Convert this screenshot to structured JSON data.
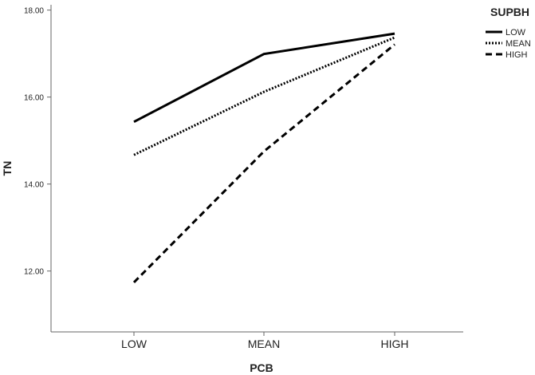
{
  "chart_data": {
    "type": "line",
    "xlabel": "PCB",
    "ylabel": "TN",
    "categories": [
      "LOW",
      "MEAN",
      "HIGH"
    ],
    "y_ticks": [
      "12.00",
      "14.00",
      "16.00",
      "18.00"
    ],
    "ylim": [
      10.6,
      18.1
    ],
    "grid": false,
    "legend": {
      "title": "SUPBH",
      "position": "top-right"
    },
    "series": [
      {
        "name": "LOW",
        "values": [
          15.43,
          16.99,
          17.46
        ],
        "style": "solid",
        "color": "#000000"
      },
      {
        "name": "MEAN",
        "values": [
          14.67,
          16.12,
          17.37
        ],
        "style": "dotted",
        "color": "#000000"
      },
      {
        "name": "HIGH",
        "values": [
          11.74,
          14.75,
          17.21
        ],
        "style": "dashed",
        "color": "#000000"
      }
    ]
  }
}
